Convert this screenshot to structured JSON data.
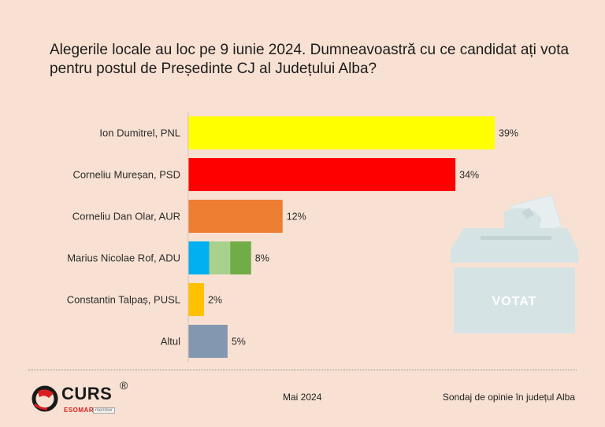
{
  "title": "Alegerile locale au loc pe 9 iunie 2024. Dumneavoastră cu ce candidat ați vota pentru postul de Președinte CJ al Județului Alba?",
  "chart_data": {
    "type": "bar",
    "orientation": "horizontal",
    "title": "Alegerile locale au loc pe 9 iunie 2024. Dumneavoastră cu ce candidat ați vota pentru postul de Președinte CJ al Județului Alba?",
    "categories": [
      "Ion Dumitrel, PNL",
      "Corneliu Mureșan, PSD",
      "Corneliu Dan Olar, AUR",
      "Marius Nicolae Rof, ADU",
      "Constantin Talpaș, PUSL",
      "Altul"
    ],
    "values": [
      39,
      34,
      12,
      8,
      2,
      5
    ],
    "value_labels": [
      "39%",
      "34%",
      "12%",
      "8%",
      "2%",
      "5%"
    ],
    "unit": "%",
    "xlim": [
      0,
      39
    ],
    "grid": false,
    "legend": "none",
    "colors": [
      [
        "#ffff00"
      ],
      [
        "#ff0000"
      ],
      [
        "#ed7d31"
      ],
      [
        "#00b0f0",
        "#a9d18e",
        "#70ad47"
      ],
      [
        "#ffc000"
      ],
      [
        "#8497b0"
      ]
    ]
  },
  "ballot_box": {
    "label": "VOTAT",
    "box_color": "#d6e3e5",
    "label_color": "#ffffff"
  },
  "footer": {
    "logo_text": "CURS",
    "logo_registered": "®",
    "logo_sub": "ESOMAR",
    "logo_member": "member",
    "date": "Mai 2024",
    "note": "Sondaj de opinie în județul Alba"
  },
  "colors": {
    "background": "#f8e1d2",
    "logo_accent": "#d81f1f"
  }
}
